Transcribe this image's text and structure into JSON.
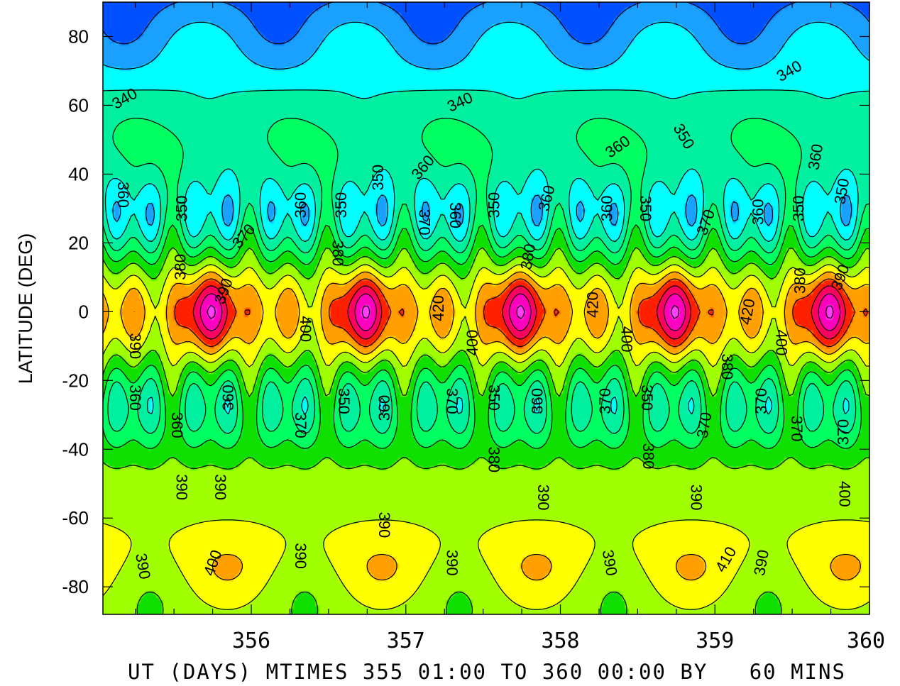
{
  "chart_data": {
    "type": "heatmap",
    "title": "",
    "xlabel": "UT (DAYS) MTIMES 355 01:00 TO 360 00:00 BY   60 MINS",
    "ylabel": "LATITUDE (DEG)",
    "x_ticks": [
      "356",
      "357",
      "358",
      "359",
      "360"
    ],
    "x_tick_values": [
      356,
      357,
      358,
      359,
      360
    ],
    "y_ticks": [
      "80",
      "60",
      "40",
      "20",
      "0",
      "-20",
      "-40",
      "-60",
      "-80"
    ],
    "y_tick_values": [
      80,
      60,
      40,
      20,
      0,
      -20,
      -40,
      -60,
      -80
    ],
    "xlim": [
      355.04,
      360
    ],
    "ylim": [
      -88,
      90
    ],
    "contour_levels": [
      320,
      330,
      340,
      350,
      360,
      370,
      380,
      390,
      400,
      410,
      420,
      430,
      440,
      450
    ],
    "colors": [
      "#0010e8",
      "#0050ff",
      "#1aa0ff",
      "#00ffff",
      "#00f0a0",
      "#00ff60",
      "#10e000",
      "#a0ff00",
      "#ffff00",
      "#ffa000",
      "#ff2000",
      "#ff0060",
      "#ff00c0",
      "#ff40ff"
    ],
    "contour_labels": [
      {
        "text": "340",
        "x": 355.18,
        "y": 62,
        "rot": -30
      },
      {
        "text": "340",
        "x": 357.35,
        "y": 61,
        "rot": -25
      },
      {
        "text": "340",
        "x": 359.48,
        "y": 70,
        "rot": -30
      },
      {
        "text": "350",
        "x": 358.8,
        "y": 51,
        "rot": 60
      },
      {
        "text": "360",
        "x": 358.37,
        "y": 48,
        "rot": -35
      },
      {
        "text": "360",
        "x": 357.11,
        "y": 42,
        "rot": -50
      },
      {
        "text": "360",
        "x": 359.65,
        "y": 45,
        "rot": -80
      },
      {
        "text": "350",
        "x": 356.82,
        "y": 39,
        "rot": -90
      },
      {
        "text": "360",
        "x": 355.17,
        "y": 34,
        "rot": 90
      },
      {
        "text": "350",
        "x": 355.55,
        "y": 30,
        "rot": -90
      },
      {
        "text": "360",
        "x": 356.32,
        "y": 31,
        "rot": -90
      },
      {
        "text": "350",
        "x": 356.58,
        "y": 31,
        "rot": -90
      },
      {
        "text": "370",
        "x": 355.95,
        "y": 22,
        "rot": -50
      },
      {
        "text": "370",
        "x": 357.12,
        "y": 26,
        "rot": 90
      },
      {
        "text": "360",
        "x": 357.32,
        "y": 28,
        "rot": 90
      },
      {
        "text": "350",
        "x": 357.57,
        "y": 31,
        "rot": -90
      },
      {
        "text": "360",
        "x": 357.91,
        "y": 33,
        "rot": -75
      },
      {
        "text": "360",
        "x": 358.3,
        "y": 30,
        "rot": -90
      },
      {
        "text": "350",
        "x": 358.55,
        "y": 30,
        "rot": 90
      },
      {
        "text": "370",
        "x": 358.94,
        "y": 26,
        "rot": -70
      },
      {
        "text": "360",
        "x": 359.28,
        "y": 29,
        "rot": -90
      },
      {
        "text": "350",
        "x": 359.54,
        "y": 30,
        "rot": -90
      },
      {
        "text": "350",
        "x": 359.82,
        "y": 35,
        "rot": -80
      },
      {
        "text": "380",
        "x": 355.54,
        "y": 13,
        "rot": -90
      },
      {
        "text": "380",
        "x": 356.56,
        "y": 17,
        "rot": 90
      },
      {
        "text": "380",
        "x": 357.79,
        "y": 16,
        "rot": -80
      },
      {
        "text": "380",
        "x": 359.55,
        "y": 9,
        "rot": -90
      },
      {
        "text": "390",
        "x": 355.82,
        "y": 6,
        "rot": -70
      },
      {
        "text": "390",
        "x": 359.81,
        "y": 10,
        "rot": -70
      },
      {
        "text": "420",
        "x": 357.21,
        "y": 1,
        "rot": -90
      },
      {
        "text": "420",
        "x": 358.21,
        "y": 2,
        "rot": -90
      },
      {
        "text": "420",
        "x": 359.21,
        "y": 0,
        "rot": -80
      },
      {
        "text": "400",
        "x": 356.35,
        "y": -5,
        "rot": 90
      },
      {
        "text": "400",
        "x": 357.43,
        "y": -9,
        "rot": -90
      },
      {
        "text": "400",
        "x": 358.43,
        "y": -8,
        "rot": 90
      },
      {
        "text": "400",
        "x": 359.43,
        "y": -9,
        "rot": 90
      },
      {
        "text": "390",
        "x": 355.25,
        "y": -10,
        "rot": 90
      },
      {
        "text": "380",
        "x": 359.08,
        "y": -16,
        "rot": 90
      },
      {
        "text": "360",
        "x": 355.25,
        "y": -25,
        "rot": 90
      },
      {
        "text": "360",
        "x": 355.52,
        "y": -33,
        "rot": 90
      },
      {
        "text": "360",
        "x": 355.85,
        "y": -25,
        "rot": -90
      },
      {
        "text": "370",
        "x": 356.32,
        "y": -33,
        "rot": 90
      },
      {
        "text": "350",
        "x": 356.6,
        "y": -26,
        "rot": 90
      },
      {
        "text": "360",
        "x": 356.86,
        "y": -28,
        "rot": -90
      },
      {
        "text": "370",
        "x": 357.3,
        "y": -26,
        "rot": 90
      },
      {
        "text": "350",
        "x": 357.57,
        "y": -25,
        "rot": 90
      },
      {
        "text": "360",
        "x": 357.85,
        "y": -26,
        "rot": -90
      },
      {
        "text": "370",
        "x": 358.29,
        "y": -26,
        "rot": -90
      },
      {
        "text": "350",
        "x": 358.56,
        "y": -25,
        "rot": 90
      },
      {
        "text": "370",
        "x": 358.93,
        "y": -33,
        "rot": -80
      },
      {
        "text": "370",
        "x": 359.3,
        "y": -26,
        "rot": -90
      },
      {
        "text": "370",
        "x": 359.53,
        "y": -34,
        "rot": 90
      },
      {
        "text": "370",
        "x": 359.83,
        "y": -35,
        "rot": -90
      },
      {
        "text": "380",
        "x": 357.57,
        "y": -43,
        "rot": 90
      },
      {
        "text": "380",
        "x": 358.57,
        "y": -42,
        "rot": 90
      },
      {
        "text": "390",
        "x": 355.55,
        "y": -51,
        "rot": 90
      },
      {
        "text": "390",
        "x": 355.8,
        "y": -51,
        "rot": 90
      },
      {
        "text": "390",
        "x": 356.86,
        "y": -62,
        "rot": 90
      },
      {
        "text": "390",
        "x": 357.89,
        "y": -54,
        "rot": 90
      },
      {
        "text": "390",
        "x": 358.88,
        "y": -54,
        "rot": 90
      },
      {
        "text": "400",
        "x": 359.84,
        "y": -53,
        "rot": 90
      },
      {
        "text": "390",
        "x": 355.3,
        "y": -74,
        "rot": 80
      },
      {
        "text": "400",
        "x": 355.75,
        "y": -73,
        "rot": -70
      },
      {
        "text": "390",
        "x": 356.32,
        "y": -71,
        "rot": 90
      },
      {
        "text": "390",
        "x": 357.3,
        "y": -73,
        "rot": 90
      },
      {
        "text": "390",
        "x": 358.32,
        "y": -73,
        "rot": 80
      },
      {
        "text": "410",
        "x": 359.07,
        "y": -72,
        "rot": -60
      },
      {
        "text": "390",
        "x": 359.3,
        "y": -73,
        "rot": -80
      }
    ]
  }
}
